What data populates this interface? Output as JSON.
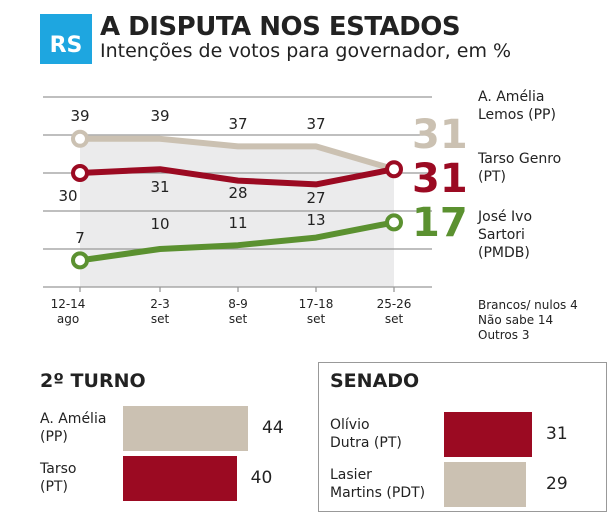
{
  "header": {
    "badge": "RS",
    "title": "A DISPUTA NOS ESTADOS",
    "subtitle": "Intenções de votos para governador, em %"
  },
  "colors": {
    "badge": "#1ea6e0",
    "amelia": "#cbc1b2",
    "tarso": "#9b0a22",
    "sartori": "#5b9130",
    "grid": "#999999",
    "shade": "#ebebec"
  },
  "chart_data": [
    {
      "type": "line",
      "categories": [
        [
          "12-14",
          "ago"
        ],
        [
          "2-3",
          "set"
        ],
        [
          "8-9",
          "set"
        ],
        [
          "17-18",
          "set"
        ],
        [
          "25-26",
          "set"
        ]
      ],
      "ylim": [
        0,
        50
      ],
      "grid": true,
      "series": [
        {
          "name": "A. Amélia Lemos (PP)",
          "name_lines": [
            "A. Amélia",
            "Lemos (PP)"
          ],
          "values": [
            39,
            39,
            37,
            37,
            31
          ],
          "color": "#cbc1b2"
        },
        {
          "name": "Tarso Genro (PT)",
          "name_lines": [
            "Tarso Genro",
            "(PT)"
          ],
          "values": [
            30,
            31,
            28,
            27,
            31
          ],
          "color": "#9b0a22"
        },
        {
          "name": "José Ivo Sartori (PMDB)",
          "name_lines": [
            "José Ivo",
            "Sartori",
            "(PMDB)"
          ],
          "values": [
            7,
            10,
            11,
            13,
            17
          ],
          "color": "#5b9130"
        }
      ],
      "notes": [
        "Brancos/ nulos 4",
        "Não sabe 14",
        "Outros 3"
      ]
    },
    {
      "type": "bar",
      "title": "2º TURNO",
      "categories": [
        [
          "A. Amélia",
          "(PP)"
        ],
        [
          "Tarso",
          "(PT)"
        ]
      ],
      "values": [
        44,
        40
      ],
      "colors": [
        "#cbc1b2",
        "#9b0a22"
      ]
    },
    {
      "type": "bar",
      "title": "SENADO",
      "categories": [
        [
          "Olívio",
          "Dutra (PT)"
        ],
        [
          "Lasier",
          "Martins (PDT)"
        ]
      ],
      "values": [
        31,
        29
      ],
      "colors": [
        "#9b0a22",
        "#cbc1b2"
      ]
    }
  ]
}
